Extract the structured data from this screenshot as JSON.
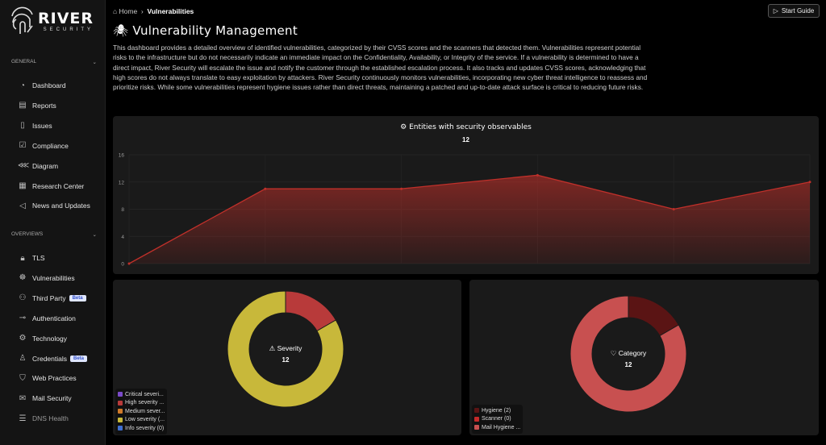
{
  "brand": {
    "name": "RIVER",
    "sub": "SECURITY"
  },
  "sidebar": {
    "general_label": "GENERAL",
    "general": [
      {
        "label": "Dashboard",
        "icon": "pie-chart-icon"
      },
      {
        "label": "Reports",
        "icon": "report-icon"
      },
      {
        "label": "Issues",
        "icon": "document-icon"
      },
      {
        "label": "Compliance",
        "icon": "clipboard-check-icon"
      },
      {
        "label": "Diagram",
        "icon": "share-icon"
      },
      {
        "label": "Research Center",
        "icon": "newspaper-icon"
      },
      {
        "label": "News and Updates",
        "icon": "megaphone-icon"
      }
    ],
    "overviews_label": "OVERVIEWS",
    "overviews": [
      {
        "label": "TLS",
        "icon": "lock-icon"
      },
      {
        "label": "Vulnerabilities",
        "icon": "bug-icon"
      },
      {
        "label": "Third Party",
        "icon": "users-icon",
        "badge": "Beta"
      },
      {
        "label": "Authentication",
        "icon": "key-icon"
      },
      {
        "label": "Technology",
        "icon": "gear-icon"
      },
      {
        "label": "Credentials",
        "icon": "user-group-icon",
        "badge": "Beta"
      },
      {
        "label": "Web Practices",
        "icon": "shield-icon"
      },
      {
        "label": "Mail Security",
        "icon": "mail-icon"
      },
      {
        "label": "DNS Health",
        "icon": "server-icon"
      }
    ]
  },
  "breadcrumb": {
    "home": "Home",
    "current": "Vulnerabilities"
  },
  "start_guide": "Start Guide",
  "page": {
    "title": "Vulnerability Management",
    "description": "This dashboard provides a detailed overview of identified vulnerabilities, categorized by their CVSS scores and the scanners that detected them. Vulnerabilities represent potential risks to the infrastructure but do not necessarily indicate an immediate impact on the Confidentiality, Availability, or Integrity of the service. If a vulnerability is determined to have a direct impact, River Security will escalate the issue and notify the customer through the established escalation process. It also tracks and updates CVSS scores, acknowledging that high scores do not always translate to easy exploitation by attackers. River Security continuously monitors vulnerabilities, incorporating new cyber threat intelligence to reassess and prioritize risks. While some vulnerabilities represent hygiene issues rather than direct threats, maintaining a patched and up-to-date attack surface is critical to reducing future risks."
  },
  "chart_data": [
    {
      "type": "area",
      "title": "Entities with security observables",
      "subtitle": "12",
      "y": [
        0,
        11,
        11,
        13,
        8,
        12
      ],
      "ylim": [
        0,
        16
      ],
      "yticks": [
        "0",
        "4",
        "8",
        "12",
        "16"
      ],
      "color": "#c0302a",
      "grid": true
    },
    {
      "type": "pie",
      "title": "Severity",
      "subtitle": "12",
      "categories": [
        "Critical severi...",
        "High severity ...",
        "Medium sever...",
        "Low severity (...",
        "Info severity (0)"
      ],
      "values": [
        0,
        2,
        0,
        10,
        0
      ],
      "colors": [
        "#7b4bc9",
        "#b83a3a",
        "#d07a2a",
        "#c8b83a",
        "#3f6fd0"
      ],
      "legend": "bottom-left"
    },
    {
      "type": "pie",
      "title": "Category",
      "subtitle": "12",
      "categories": [
        "Hygiene (2)",
        "Scanner (0)",
        "Mail Hygiene ..."
      ],
      "values": [
        2,
        0,
        10
      ],
      "colors": [
        "#5a1414",
        "#c42a2a",
        "#c85050"
      ],
      "legend": "bottom-left"
    }
  ]
}
